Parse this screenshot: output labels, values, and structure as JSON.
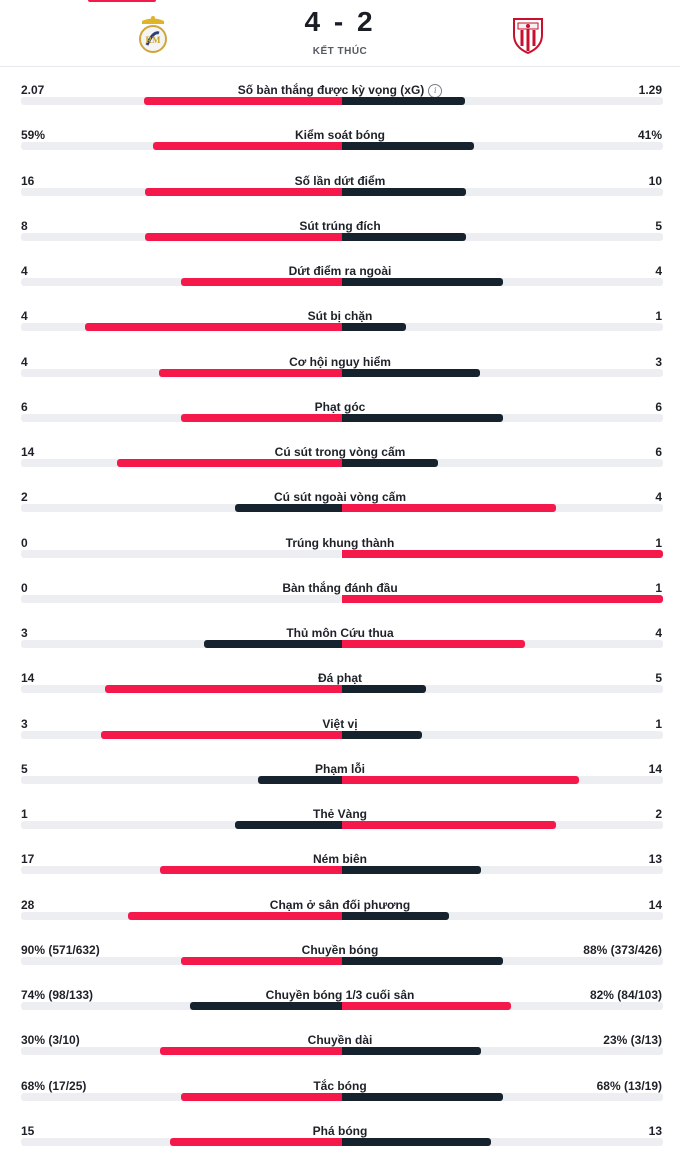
{
  "match": {
    "home_crest": "real-madrid-crest",
    "away_crest": "sevilla-crest",
    "score": "4 - 2",
    "status": "KẾT THÚC"
  },
  "colors": {
    "accent_red": "#f5184b",
    "navy": "#16232e",
    "track": "#eceef1"
  },
  "stats": [
    {
      "label": "Số bàn thắng được kỳ vọng (xG)",
      "home": "2.07",
      "away": "1.29",
      "home_share": 0.616,
      "away_share": 0.384,
      "info_icon": true
    },
    {
      "label": "Kiểm soát bóng",
      "home": "59%",
      "away": "41%",
      "home_share": 0.59,
      "away_share": 0.41
    },
    {
      "label": "Số lần dứt điểm",
      "home": "16",
      "away": "10",
      "home_share": 0.615,
      "away_share": 0.385
    },
    {
      "label": "Sút trúng đích",
      "home": "8",
      "away": "5",
      "home_share": 0.615,
      "away_share": 0.385
    },
    {
      "label": "Dứt điểm ra ngoài",
      "home": "4",
      "away": "4",
      "home_share": 0.5,
      "away_share": 0.5
    },
    {
      "label": "Sút bị chặn",
      "home": "4",
      "away": "1",
      "home_share": 0.8,
      "away_share": 0.2
    },
    {
      "label": "Cơ hội nguy hiểm",
      "home": "4",
      "away": "3",
      "home_share": 0.571,
      "away_share": 0.429
    },
    {
      "label": "Phạt góc",
      "home": "6",
      "away": "6",
      "home_share": 0.5,
      "away_share": 0.5
    },
    {
      "label": "Cú sút trong vòng cấm",
      "home": "14",
      "away": "6",
      "home_share": 0.7,
      "away_share": 0.3
    },
    {
      "label": "Cú sút ngoài vòng cấm",
      "home": "2",
      "away": "4",
      "home_share": 0.333,
      "away_share": 0.667
    },
    {
      "label": "Trúng khung thành",
      "home": "0",
      "away": "1",
      "home_share": 0,
      "away_share": 1
    },
    {
      "label": "Bàn thắng đánh đầu",
      "home": "0",
      "away": "1",
      "home_share": 0,
      "away_share": 1
    },
    {
      "label": "Thủ môn Cứu thua",
      "home": "3",
      "away": "4",
      "home_share": 0.429,
      "away_share": 0.571
    },
    {
      "label": "Đá phạt",
      "home": "14",
      "away": "5",
      "home_share": 0.737,
      "away_share": 0.263
    },
    {
      "label": "Việt vị",
      "home": "3",
      "away": "1",
      "home_share": 0.75,
      "away_share": 0.25
    },
    {
      "label": "Phạm lỗi",
      "home": "5",
      "away": "14",
      "home_share": 0.263,
      "away_share": 0.737
    },
    {
      "label": "Thẻ Vàng",
      "home": "1",
      "away": "2",
      "home_share": 0.333,
      "away_share": 0.667
    },
    {
      "label": "Ném biên",
      "home": "17",
      "away": "13",
      "home_share": 0.567,
      "away_share": 0.433
    },
    {
      "label": "Chạm ở sân đối phương",
      "home": "28",
      "away": "14",
      "home_share": 0.667,
      "away_share": 0.333
    },
    {
      "label": "Chuyền bóng",
      "home": "90% (571/632)",
      "away": "88% (373/426)",
      "home_share": 0.5,
      "away_share": 0.5
    },
    {
      "label": "Chuyền bóng 1/3 cuối sân",
      "home": "74% (98/133)",
      "away": "82% (84/103)",
      "home_share": 0.474,
      "away_share": 0.526
    },
    {
      "label": "Chuyền dài",
      "home": "30% (3/10)",
      "away": "23% (3/13)",
      "home_share": 0.566,
      "away_share": 0.434
    },
    {
      "label": "Tắc bóng",
      "home": "68% (17/25)",
      "away": "68% (13/19)",
      "home_share": 0.5,
      "away_share": 0.5
    },
    {
      "label": "Phá bóng",
      "home": "15",
      "away": "13",
      "home_share": 0.536,
      "away_share": 0.464
    }
  ]
}
